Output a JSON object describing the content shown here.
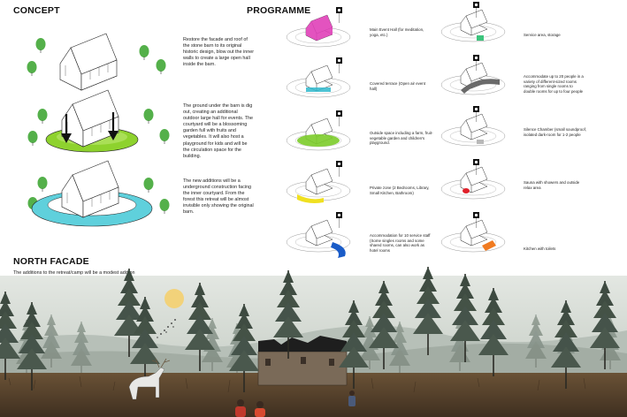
{
  "headings": {
    "concept": "CONCEPT",
    "programme": "PROGRAMME",
    "north_facade": "NORTH FACADE"
  },
  "concept": [
    {
      "text": "Restore the facade and roof of the stone barn to its original historic design, blow out the inner walls to create a large open hall inside the barn."
    },
    {
      "text": "The ground under the barn is dig out, creating an additional outdoor large hall for events. The courtyard will be a blossoming garden full with fruits and vegetables. It will also host a playground for kids and will be the circulation space for the building."
    },
    {
      "text": "The new additions will be a underground construction facing the inner courtyard. From the forest this retreat will be almost invisible only showing the original barn."
    }
  ],
  "programme": [
    {
      "text": "Main Event Hall (for meditation, yoga, etc.)",
      "icon": "meditation-icon",
      "color": "#e040b8"
    },
    {
      "text": "Service area, storage",
      "icon": "key-icon",
      "color": "#3cc47c"
    },
    {
      "text": "Covered terrace (Open air event hall)",
      "icon": "terrace-icon",
      "color": "#2fb8cc"
    },
    {
      "text": "Accommodate up to 20 people in a variety of different-sized rooms ranging from single rooms to double rooms for up to four people",
      "icon": "bed-icon",
      "color": "#6a6a6a"
    },
    {
      "text": "Outside space including a farm, fruit-vegetable garden and children's playground.",
      "icon": "garden-icon",
      "color": "#7ccc2a"
    },
    {
      "text": "Silence Chamber (small soundproof, isolated dark-room for 1-2 people",
      "icon": "silence-icon",
      "color": "#b8b8b8"
    },
    {
      "text": "Private zone (2 Bedrooms, Library, Small Kitchen, Bathroom)",
      "icon": "private-icon",
      "color": "#f0e020"
    },
    {
      "text": "Sauna with showers and outside relax area",
      "icon": "sauna-icon",
      "color": "#e0202a"
    },
    {
      "text": "Accommodation for 10 service staff (Some singles rooms and some shared rooms, can also work as hotel rooms",
      "icon": "staff-icon",
      "color": "#1a5cc8"
    },
    {
      "text": "Kitchen with toilets",
      "icon": "kitchen-icon",
      "color": "#f07a20"
    }
  ],
  "north_facade": {
    "text": "The additions to the retreat/camp will be a modest add-on to the current situation. From a far distance the retreat will be just the stone barn standing there just like today. But walking closer this new world/sanctuary will appear."
  },
  "colors": {
    "sky": "#d9dfda",
    "sun": "#f2d27a",
    "ground": "#5b4630",
    "courtyard": "#8ed22e",
    "ring": "#5fd0dc"
  }
}
